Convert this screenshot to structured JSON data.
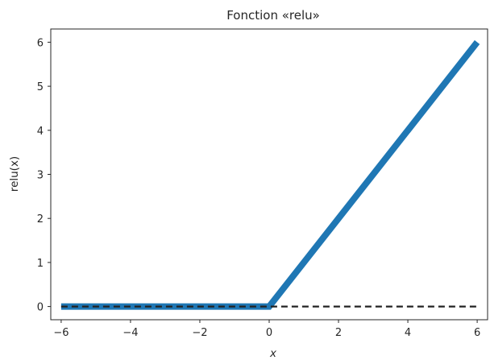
{
  "chart_data": {
    "type": "line",
    "title": "Fonction «relu»",
    "xlabel": "x",
    "ylabel": "relu(x)",
    "xlim": [
      -6.3,
      6.3
    ],
    "ylim": [
      -0.3,
      6.3
    ],
    "xticks": [
      -6,
      -4,
      -2,
      0,
      2,
      4,
      6
    ],
    "xtick_labels": [
      "−6",
      "−4",
      "−2",
      "0",
      "2",
      "4",
      "6"
    ],
    "yticks": [
      0,
      1,
      2,
      3,
      4,
      5,
      6
    ],
    "ytick_labels": [
      "0",
      "1",
      "2",
      "3",
      "4",
      "5",
      "6"
    ],
    "grid": false,
    "series": [
      {
        "style": "solid-thick",
        "color": "#1f77b4",
        "x": [
          -6,
          0,
          6
        ],
        "y": [
          0,
          0,
          6
        ]
      },
      {
        "style": "dashed",
        "color": "#222222",
        "x": [
          -6,
          6
        ],
        "y": [
          0,
          0
        ]
      }
    ]
  }
}
